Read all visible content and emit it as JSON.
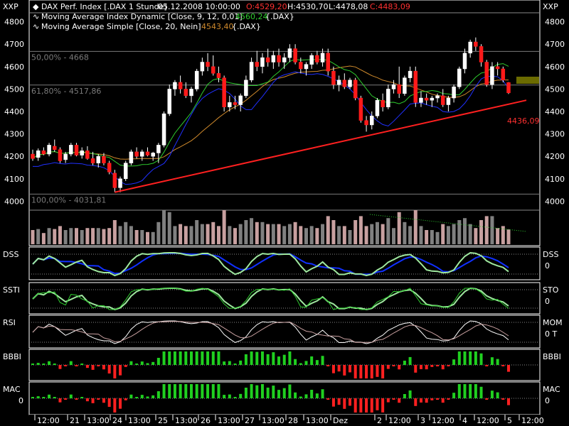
{
  "chart_data": {
    "type": "candlestick",
    "instrument": {
      "title": "DAX Perf. Index [.DAX  1 Stunde]",
      "date": "05.12.2008 10:00:00",
      "open_label": "O:4529,20",
      "high_label": "H:4530,70",
      "low_label": "L:4478,08",
      "close_label": "C:4483,09"
    },
    "corner_labels": {
      "left": "XXP",
      "right": "XXP"
    },
    "legend": [
      {
        "text": "Moving Average Index Dynamic [Close, 9, 12, 0,01]",
        "value": "4560,24",
        "symbol": "{.DAX}",
        "color": "#2ecc2e"
      },
      {
        "text": "Moving Average Simple [Close, 20, Nein]",
        "value": "4543,40",
        "symbol": "{.DAX}",
        "color": "#d08a2c"
      }
    ],
    "y_axis": {
      "min": 3960,
      "max": 4840,
      "ticks": [
        "4800",
        "4700",
        "4600",
        "4500",
        "4400",
        "4300",
        "4200",
        "4100",
        "4000"
      ]
    },
    "fib_levels": [
      {
        "label": "50,00% - 4668",
        "value": 4668
      },
      {
        "label": "61,80% - 4517,86",
        "value": 4517.86
      },
      {
        "label": "100,00% - 4031,81",
        "value": 4031.81
      }
    ],
    "trendline": {
      "start": [
        20,
        4040
      ],
      "end": [
        138,
        4450
      ]
    },
    "current_price_label": "4436,09",
    "series": [
      {
        "name": "Candles",
        "ohlc": [
          [
            4210,
            4230,
            4180,
            4190
          ],
          [
            4195,
            4235,
            4180,
            4225
          ],
          [
            4225,
            4240,
            4205,
            4210
          ],
          [
            4210,
            4260,
            4200,
            4250
          ],
          [
            4245,
            4275,
            4220,
            4230
          ],
          [
            4230,
            4240,
            4170,
            4180
          ],
          [
            4185,
            4220,
            4170,
            4210
          ],
          [
            4210,
            4260,
            4200,
            4250
          ],
          [
            4250,
            4260,
            4200,
            4205
          ],
          [
            4205,
            4240,
            4190,
            4225
          ],
          [
            4225,
            4245,
            4185,
            4190
          ],
          [
            4190,
            4220,
            4160,
            4170
          ],
          [
            4170,
            4210,
            4150,
            4200
          ],
          [
            4200,
            4215,
            4160,
            4170
          ],
          [
            4170,
            4180,
            4120,
            4130
          ],
          [
            4125,
            4140,
            4040,
            4060
          ],
          [
            4060,
            4110,
            4040,
            4100
          ],
          [
            4100,
            4180,
            4090,
            4170
          ],
          [
            4170,
            4230,
            4160,
            4220
          ],
          [
            4220,
            4240,
            4190,
            4200
          ],
          [
            4200,
            4230,
            4180,
            4220
          ],
          [
            4220,
            4240,
            4200,
            4205
          ],
          [
            4200,
            4220,
            4180,
            4215
          ],
          [
            4215,
            4260,
            4170,
            4250
          ],
          [
            4250,
            4400,
            4240,
            4390
          ],
          [
            4390,
            4520,
            4380,
            4500
          ],
          [
            4500,
            4540,
            4470,
            4530
          ],
          [
            4530,
            4560,
            4480,
            4500
          ],
          [
            4500,
            4530,
            4460,
            4470
          ],
          [
            4470,
            4510,
            4440,
            4500
          ],
          [
            4500,
            4590,
            4490,
            4580
          ],
          [
            4580,
            4640,
            4560,
            4620
          ],
          [
            4620,
            4660,
            4580,
            4600
          ],
          [
            4600,
            4650,
            4560,
            4570
          ],
          [
            4570,
            4600,
            4530,
            4550
          ],
          [
            4550,
            4560,
            4400,
            4420
          ],
          [
            4420,
            4470,
            4400,
            4440
          ],
          [
            4440,
            4470,
            4410,
            4430
          ],
          [
            4430,
            4480,
            4400,
            4470
          ],
          [
            4470,
            4560,
            4460,
            4540
          ],
          [
            4540,
            4640,
            4530,
            4620
          ],
          [
            4620,
            4670,
            4580,
            4600
          ],
          [
            4600,
            4660,
            4570,
            4640
          ],
          [
            4640,
            4680,
            4600,
            4620
          ],
          [
            4620,
            4670,
            4590,
            4650
          ],
          [
            4650,
            4680,
            4600,
            4620
          ],
          [
            4620,
            4660,
            4590,
            4640
          ],
          [
            4640,
            4700,
            4620,
            4680
          ],
          [
            4680,
            4700,
            4610,
            4620
          ],
          [
            4620,
            4640,
            4570,
            4590
          ],
          [
            4590,
            4620,
            4560,
            4610
          ],
          [
            4610,
            4660,
            4590,
            4650
          ],
          [
            4650,
            4670,
            4610,
            4620
          ],
          [
            4620,
            4680,
            4600,
            4660
          ],
          [
            4660,
            4680,
            4560,
            4580
          ],
          [
            4580,
            4600,
            4500,
            4520
          ],
          [
            4520,
            4560,
            4490,
            4540
          ],
          [
            4540,
            4570,
            4500,
            4510
          ],
          [
            4510,
            4550,
            4500,
            4540
          ],
          [
            4540,
            4550,
            4450,
            4460
          ],
          [
            4460,
            4470,
            4350,
            4360
          ],
          [
            4360,
            4380,
            4310,
            4340
          ],
          [
            4340,
            4400,
            4320,
            4380
          ],
          [
            4380,
            4460,
            4370,
            4450
          ],
          [
            4450,
            4480,
            4400,
            4420
          ],
          [
            4420,
            4520,
            4410,
            4500
          ],
          [
            4500,
            4540,
            4480,
            4520
          ],
          [
            4520,
            4600,
            4460,
            4480
          ],
          [
            4480,
            4560,
            4470,
            4550
          ],
          [
            4550,
            4600,
            4530,
            4580
          ],
          [
            4580,
            4600,
            4420,
            4440
          ],
          [
            4440,
            4490,
            4420,
            4460
          ],
          [
            4460,
            4480,
            4430,
            4450
          ],
          [
            4450,
            4470,
            4420,
            4460
          ],
          [
            4460,
            4480,
            4440,
            4470
          ],
          [
            4470,
            4500,
            4420,
            4430
          ],
          [
            4430,
            4470,
            4400,
            4460
          ],
          [
            4460,
            4520,
            4440,
            4510
          ],
          [
            4510,
            4600,
            4500,
            4590
          ],
          [
            4590,
            4680,
            4570,
            4660
          ],
          [
            4660,
            4720,
            4640,
            4710
          ],
          [
            4710,
            4730,
            4670,
            4690
          ],
          [
            4690,
            4700,
            4600,
            4620
          ],
          [
            4620,
            4630,
            4510,
            4520
          ],
          [
            4520,
            4620,
            4500,
            4600
          ],
          [
            4600,
            4620,
            4560,
            4590
          ],
          [
            4590,
            4600,
            4530,
            4540
          ],
          [
            4529,
            4531,
            4478,
            4483
          ]
        ]
      }
    ],
    "indicator_panels": [
      {
        "label": "DSS",
        "right_label": "DSS",
        "right_value": "0"
      },
      {
        "label": "SSTI",
        "right_label": "STO",
        "right_value": "0"
      },
      {
        "label": "RSI",
        "right_label": "MOM",
        "right_value": "0 T"
      },
      {
        "label": "BBBI",
        "right_label": "BBBI",
        "right_value": ""
      },
      {
        "label": "MAC",
        "right_label": "MAC",
        "right_value": "0",
        "left_value": "0"
      }
    ],
    "x_axis": {
      "labels": [
        "12:00",
        "21",
        "13:00",
        "24",
        "13:00",
        "25",
        "13:00",
        "26",
        "13:00",
        "27",
        "13:00",
        "28",
        "13:00",
        "Dez",
        "2",
        "12:00",
        "3",
        "12:00",
        "4",
        "12:00",
        "5",
        "12:00"
      ]
    }
  }
}
